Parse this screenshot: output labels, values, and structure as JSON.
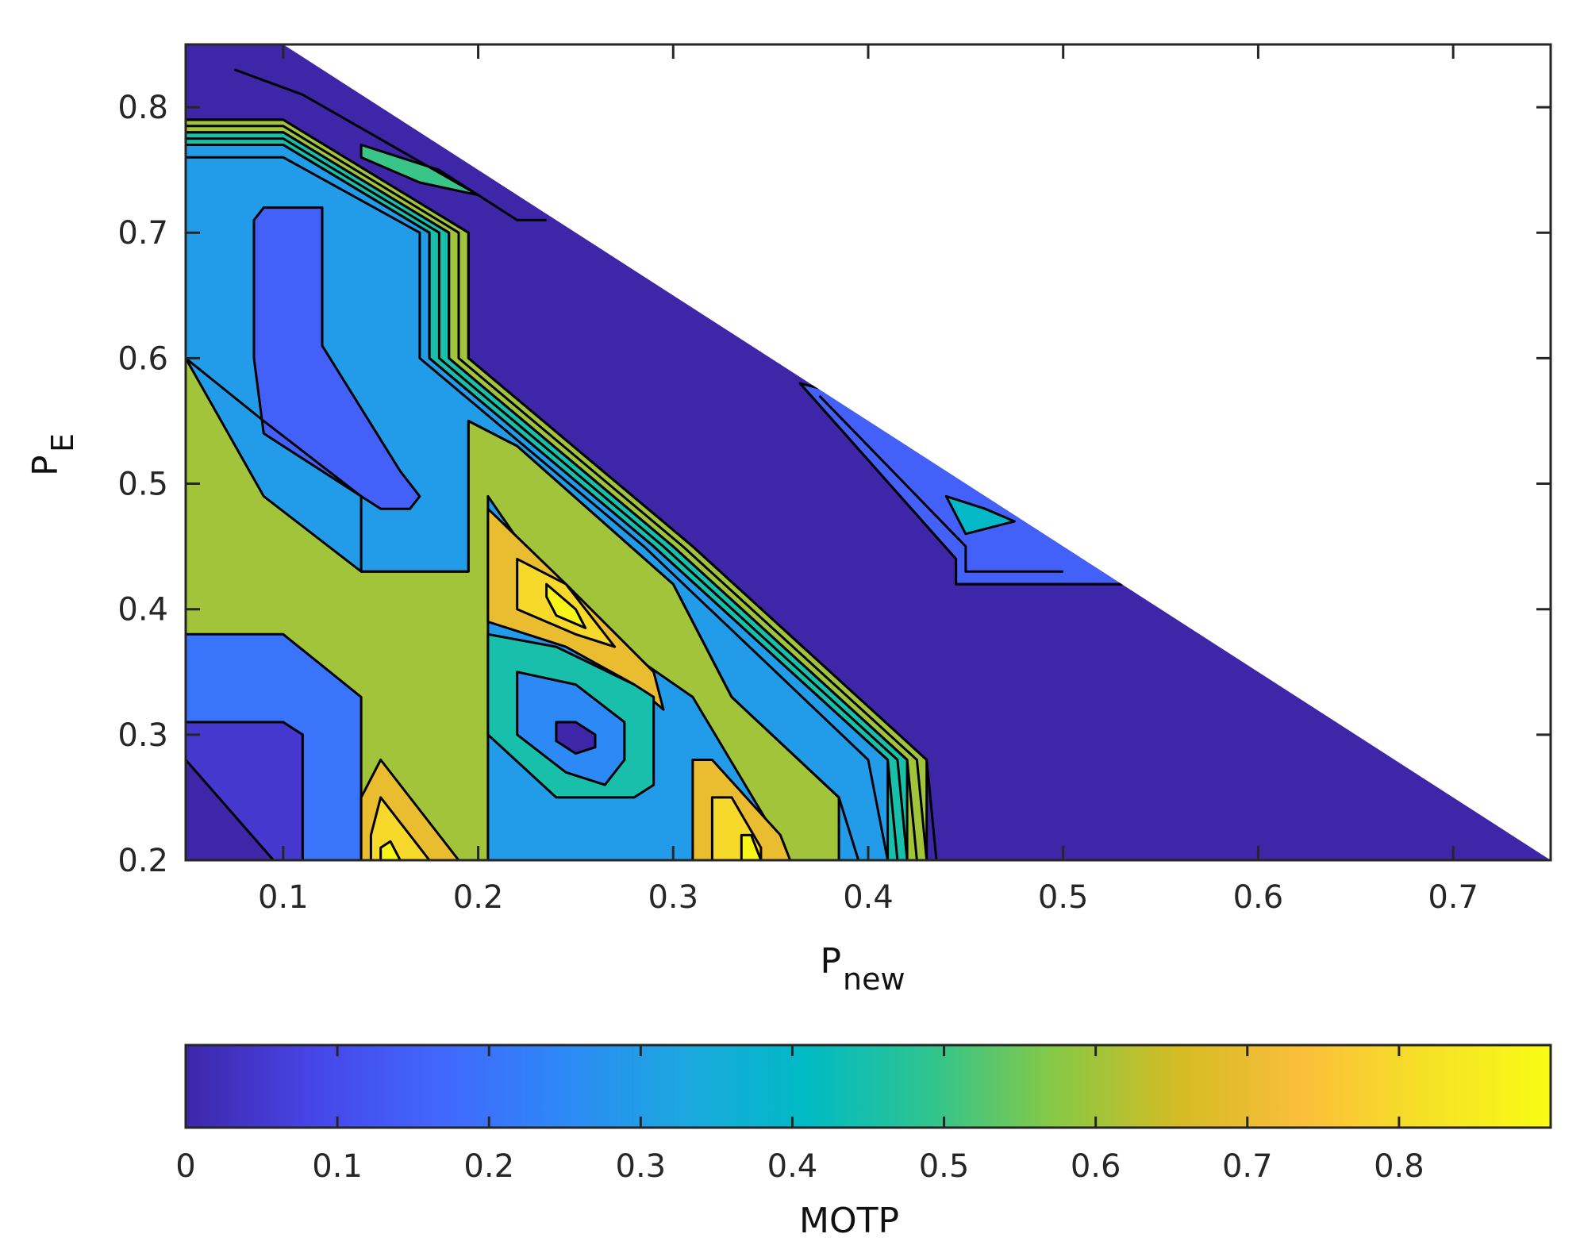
{
  "chart_data": {
    "type": "contour",
    "xlabel": "P",
    "xlabel_subscript": "new",
    "ylabel": "P",
    "ylabel_subscript": "E",
    "xlim": [
      0.05,
      0.75
    ],
    "ylim": [
      0.2,
      0.85
    ],
    "xticks": [
      0.1,
      0.2,
      0.3,
      0.4,
      0.5,
      0.6,
      0.7
    ],
    "xtick_labels": [
      "0.1",
      "0.2",
      "0.3",
      "0.4",
      "0.5",
      "0.6",
      "0.7"
    ],
    "yticks": [
      0.2,
      0.3,
      0.4,
      0.5,
      0.6,
      0.7,
      0.8
    ],
    "ytick_labels": [
      "0.2",
      "0.3",
      "0.4",
      "0.5",
      "0.6",
      "0.7",
      "0.8"
    ],
    "valid_region": "P_new + P_E <= 0.95",
    "background_level": 0.0,
    "regions": [
      {
        "name": "top-left-band",
        "level": 0.6,
        "points": [
          [
            0.05,
            0.79
          ],
          [
            0.1,
            0.79
          ],
          [
            0.195,
            0.7
          ],
          [
            0.195,
            0.6
          ],
          [
            0.31,
            0.45
          ],
          [
            0.43,
            0.28
          ],
          [
            0.43,
            0.2
          ],
          [
            0.05,
            0.2
          ]
        ]
      },
      {
        "name": "mid-band-a",
        "level": 0.45,
        "points": [
          [
            0.05,
            0.78
          ],
          [
            0.1,
            0.78
          ],
          [
            0.185,
            0.7
          ],
          [
            0.185,
            0.6
          ],
          [
            0.3,
            0.45
          ],
          [
            0.42,
            0.28
          ],
          [
            0.42,
            0.2
          ],
          [
            0.05,
            0.2
          ]
        ]
      },
      {
        "name": "mid-band-b",
        "level": 0.3,
        "points": [
          [
            0.05,
            0.77
          ],
          [
            0.1,
            0.77
          ],
          [
            0.175,
            0.7
          ],
          [
            0.175,
            0.6
          ],
          [
            0.29,
            0.45
          ],
          [
            0.41,
            0.28
          ],
          [
            0.41,
            0.2
          ],
          [
            0.05,
            0.2
          ]
        ]
      },
      {
        "name": "green-plateau",
        "level": 0.6,
        "points": [
          [
            0.05,
            0.6
          ],
          [
            0.05,
            0.2
          ],
          [
            0.205,
            0.2
          ],
          [
            0.205,
            0.25
          ],
          [
            0.205,
            0.49
          ],
          [
            0.245,
            0.4
          ],
          [
            0.31,
            0.33
          ],
          [
            0.36,
            0.2
          ],
          [
            0.385,
            0.2
          ],
          [
            0.385,
            0.25
          ],
          [
            0.33,
            0.33
          ],
          [
            0.3,
            0.42
          ],
          [
            0.22,
            0.53
          ],
          [
            0.195,
            0.55
          ],
          [
            0.195,
            0.43
          ],
          [
            0.14,
            0.43
          ],
          [
            0.09,
            0.49
          ],
          [
            0.05,
            0.6
          ]
        ]
      },
      {
        "name": "upper-left-low-core",
        "level": 0.0,
        "points": [
          [
            0.095,
            0.7
          ],
          [
            0.1,
            0.71
          ],
          [
            0.11,
            0.71
          ],
          [
            0.11,
            0.6
          ],
          [
            0.15,
            0.5
          ],
          [
            0.16,
            0.5
          ],
          [
            0.16,
            0.49
          ],
          [
            0.1,
            0.55
          ],
          [
            0.095,
            0.6
          ]
        ]
      },
      {
        "name": "upper-left-blue",
        "level": 0.15,
        "points": [
          [
            0.085,
            0.71
          ],
          [
            0.09,
            0.72
          ],
          [
            0.12,
            0.72
          ],
          [
            0.12,
            0.61
          ],
          [
            0.16,
            0.51
          ],
          [
            0.17,
            0.49
          ],
          [
            0.165,
            0.48
          ],
          [
            0.15,
            0.48
          ],
          [
            0.09,
            0.54
          ],
          [
            0.085,
            0.6
          ]
        ]
      },
      {
        "name": "lower-left-low",
        "level": 0.05,
        "points": [
          [
            0.05,
            0.31
          ],
          [
            0.1,
            0.31
          ],
          [
            0.11,
            0.3
          ],
          [
            0.11,
            0.2
          ],
          [
            0.05,
            0.2
          ]
        ]
      },
      {
        "name": "lower-left-blue",
        "level": 0.2,
        "points": [
          [
            0.05,
            0.38
          ],
          [
            0.1,
            0.38
          ],
          [
            0.14,
            0.33
          ],
          [
            0.14,
            0.2
          ],
          [
            0.11,
            0.2
          ],
          [
            0.11,
            0.3
          ],
          [
            0.1,
            0.31
          ],
          [
            0.05,
            0.31
          ]
        ]
      },
      {
        "name": "bottom-corner-low",
        "level": 0.0,
        "points": [
          [
            0.05,
            0.28
          ],
          [
            0.095,
            0.2
          ],
          [
            0.05,
            0.2
          ]
        ]
      },
      {
        "name": "peak-a-gold",
        "level": 0.7,
        "points": [
          [
            0.205,
            0.48
          ],
          [
            0.245,
            0.42
          ],
          [
            0.29,
            0.35
          ],
          [
            0.295,
            0.32
          ],
          [
            0.28,
            0.34
          ],
          [
            0.245,
            0.37
          ],
          [
            0.205,
            0.39
          ]
        ]
      },
      {
        "name": "peak-a-orange",
        "level": 0.8,
        "points": [
          [
            0.22,
            0.44
          ],
          [
            0.245,
            0.42
          ],
          [
            0.27,
            0.37
          ],
          [
            0.25,
            0.38
          ],
          [
            0.22,
            0.4
          ]
        ]
      },
      {
        "name": "peak-a-yellow",
        "level": 0.88,
        "points": [
          [
            0.235,
            0.42
          ],
          [
            0.25,
            0.4
          ],
          [
            0.255,
            0.385
          ],
          [
            0.24,
            0.395
          ],
          [
            0.235,
            0.41
          ]
        ]
      },
      {
        "name": "valley-b-teal",
        "level": 0.45,
        "points": [
          [
            0.205,
            0.38
          ],
          [
            0.24,
            0.37
          ],
          [
            0.28,
            0.34
          ],
          [
            0.29,
            0.33
          ],
          [
            0.29,
            0.26
          ],
          [
            0.28,
            0.25
          ],
          [
            0.24,
            0.25
          ],
          [
            0.205,
            0.3
          ]
        ]
      },
      {
        "name": "valley-b-blue",
        "level": 0.25,
        "points": [
          [
            0.22,
            0.35
          ],
          [
            0.25,
            0.34
          ],
          [
            0.275,
            0.31
          ],
          [
            0.275,
            0.28
          ],
          [
            0.265,
            0.26
          ],
          [
            0.245,
            0.27
          ],
          [
            0.22,
            0.3
          ]
        ]
      },
      {
        "name": "valley-b-core",
        "level": 0.0,
        "points": [
          [
            0.24,
            0.31
          ],
          [
            0.25,
            0.31
          ],
          [
            0.26,
            0.3
          ],
          [
            0.26,
            0.29
          ],
          [
            0.25,
            0.285
          ],
          [
            0.24,
            0.295
          ]
        ]
      },
      {
        "name": "peak-c-gold",
        "level": 0.7,
        "points": [
          [
            0.15,
            0.28
          ],
          [
            0.19,
            0.2
          ],
          [
            0.14,
            0.2
          ],
          [
            0.14,
            0.25
          ]
        ]
      },
      {
        "name": "peak-c-orange",
        "level": 0.8,
        "points": [
          [
            0.15,
            0.25
          ],
          [
            0.175,
            0.2
          ],
          [
            0.145,
            0.2
          ],
          [
            0.145,
            0.22
          ]
        ]
      },
      {
        "name": "peak-c-yellow",
        "level": 0.88,
        "points": [
          [
            0.155,
            0.215
          ],
          [
            0.16,
            0.2
          ],
          [
            0.15,
            0.2
          ],
          [
            0.15,
            0.21
          ]
        ]
      },
      {
        "name": "peak-d-gold",
        "level": 0.7,
        "points": [
          [
            0.31,
            0.28
          ],
          [
            0.32,
            0.28
          ],
          [
            0.355,
            0.22
          ],
          [
            0.36,
            0.2
          ],
          [
            0.31,
            0.2
          ]
        ]
      },
      {
        "name": "peak-d-orange",
        "level": 0.8,
        "points": [
          [
            0.32,
            0.25
          ],
          [
            0.33,
            0.25
          ],
          [
            0.345,
            0.21
          ],
          [
            0.345,
            0.2
          ],
          [
            0.32,
            0.2
          ]
        ]
      },
      {
        "name": "peak-d-yellow",
        "level": 0.88,
        "points": [
          [
            0.335,
            0.22
          ],
          [
            0.34,
            0.22
          ],
          [
            0.345,
            0.2
          ],
          [
            0.335,
            0.2
          ]
        ]
      },
      {
        "name": "right-ridge-blue",
        "level": 0.15,
        "points": [
          [
            0.365,
            0.58
          ],
          [
            0.445,
            0.44
          ],
          [
            0.445,
            0.42
          ],
          [
            0.53,
            0.42
          ],
          [
            0.55,
            0.43
          ],
          [
            0.39,
            0.57
          ]
        ]
      },
      {
        "name": "right-ridge-teal",
        "level": 0.4,
        "points": [
          [
            0.44,
            0.49
          ],
          [
            0.45,
            0.46
          ],
          [
            0.475,
            0.47
          ],
          [
            0.46,
            0.48
          ]
        ]
      },
      {
        "name": "top-strip-teal",
        "level": 0.5,
        "points": [
          [
            0.14,
            0.77
          ],
          [
            0.18,
            0.75
          ],
          [
            0.2,
            0.73
          ],
          [
            0.17,
            0.74
          ],
          [
            0.14,
            0.76
          ]
        ]
      }
    ],
    "contour_lines": [
      [
        [
          0.05,
          0.79
        ],
        [
          0.1,
          0.79
        ],
        [
          0.195,
          0.7
        ],
        [
          0.195,
          0.6
        ],
        [
          0.31,
          0.45
        ],
        [
          0.43,
          0.28
        ],
        [
          0.435,
          0.2
        ]
      ],
      [
        [
          0.05,
          0.785
        ],
        [
          0.1,
          0.785
        ],
        [
          0.19,
          0.7
        ],
        [
          0.19,
          0.6
        ],
        [
          0.305,
          0.45
        ],
        [
          0.425,
          0.28
        ],
        [
          0.43,
          0.2
        ]
      ],
      [
        [
          0.05,
          0.78
        ],
        [
          0.1,
          0.78
        ],
        [
          0.185,
          0.7
        ],
        [
          0.185,
          0.6
        ],
        [
          0.3,
          0.45
        ],
        [
          0.42,
          0.28
        ],
        [
          0.425,
          0.2
        ]
      ],
      [
        [
          0.05,
          0.775
        ],
        [
          0.1,
          0.775
        ],
        [
          0.18,
          0.7
        ],
        [
          0.18,
          0.6
        ],
        [
          0.295,
          0.45
        ],
        [
          0.415,
          0.28
        ],
        [
          0.42,
          0.2
        ]
      ],
      [
        [
          0.05,
          0.77
        ],
        [
          0.1,
          0.77
        ],
        [
          0.175,
          0.7
        ],
        [
          0.175,
          0.6
        ],
        [
          0.29,
          0.45
        ],
        [
          0.41,
          0.28
        ],
        [
          0.415,
          0.2
        ]
      ],
      [
        [
          0.05,
          0.76
        ],
        [
          0.1,
          0.76
        ],
        [
          0.17,
          0.7
        ],
        [
          0.17,
          0.6
        ],
        [
          0.285,
          0.45
        ],
        [
          0.4,
          0.28
        ],
        [
          0.41,
          0.2
        ]
      ],
      [
        [
          0.05,
          0.6
        ],
        [
          0.05,
          0.6
        ],
        [
          0.09,
          0.55
        ],
        [
          0.14,
          0.49
        ],
        [
          0.14,
          0.43
        ],
        [
          0.195,
          0.43
        ],
        [
          0.195,
          0.55
        ],
        [
          0.22,
          0.53
        ],
        [
          0.3,
          0.42
        ],
        [
          0.33,
          0.33
        ],
        [
          0.385,
          0.25
        ],
        [
          0.395,
          0.2
        ]
      ],
      [
        [
          0.075,
          0.83
        ],
        [
          0.11,
          0.81
        ],
        [
          0.2,
          0.73
        ],
        [
          0.22,
          0.71
        ],
        [
          0.235,
          0.71
        ]
      ],
      [
        [
          0.365,
          0.58
        ],
        [
          0.445,
          0.44
        ],
        [
          0.445,
          0.42
        ],
        [
          0.53,
          0.42
        ]
      ],
      [
        [
          0.375,
          0.57
        ],
        [
          0.45,
          0.45
        ],
        [
          0.45,
          0.43
        ],
        [
          0.5,
          0.43
        ]
      ]
    ],
    "colorbar": {
      "label": "MOTP",
      "range": [
        0,
        0.9
      ],
      "ticks": [
        0,
        0.1,
        0.2,
        0.3,
        0.4,
        0.5,
        0.6,
        0.7,
        0.8
      ],
      "tick_labels": [
        "0",
        "0.1",
        "0.2",
        "0.3",
        "0.4",
        "0.5",
        "0.6",
        "0.7",
        "0.8"
      ],
      "colormap": "parula",
      "stops": [
        "#3e26a8",
        "#4744e6",
        "#4265fd",
        "#2e87f7",
        "#1ca7e0",
        "#00bac4",
        "#2fc48f",
        "#87c945",
        "#d4bb24",
        "#fbbe3b",
        "#f5e126",
        "#f9fb15"
      ]
    }
  }
}
